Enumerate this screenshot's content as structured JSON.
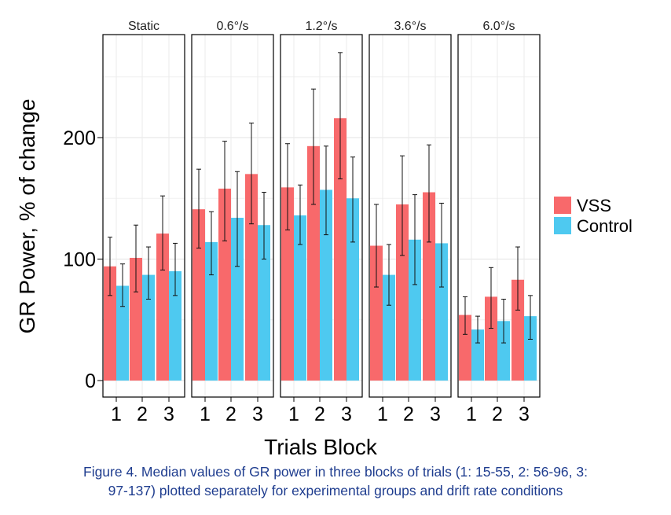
{
  "chart_data": {
    "type": "bar",
    "xlabel": "Trials Block",
    "ylabel": "GR Power, % of change",
    "ylim": [
      -10,
      295
    ],
    "yticks": [
      0,
      100,
      200
    ],
    "categories": [
      "1",
      "2",
      "3"
    ],
    "legend": {
      "position": "right",
      "entries": [
        "VSS",
        "Control"
      ]
    },
    "colors": {
      "VSS": "#f8696b",
      "Control": "#4ec9f0"
    },
    "grid": true,
    "panels": [
      {
        "label": "Static",
        "series": [
          {
            "name": "VSS",
            "values": [
              94,
              101,
              121
            ],
            "err_low": [
              70,
              73,
              91
            ],
            "err_high": [
              118,
              128,
              152
            ]
          },
          {
            "name": "Control",
            "values": [
              78,
              87,
              90
            ],
            "err_low": [
              61,
              67,
              70
            ],
            "err_high": [
              96,
              110,
              113
            ]
          }
        ]
      },
      {
        "label": "0.6°/s",
        "series": [
          {
            "name": "VSS",
            "values": [
              141,
              158,
              170
            ],
            "err_low": [
              109,
              115,
              129
            ],
            "err_high": [
              174,
              197,
              212
            ]
          },
          {
            "name": "Control",
            "values": [
              114,
              134,
              128
            ],
            "err_low": [
              87,
              94,
              100
            ],
            "err_high": [
              139,
              172,
              155
            ]
          }
        ]
      },
      {
        "label": "1.2°/s",
        "series": [
          {
            "name": "VSS",
            "values": [
              159,
              193,
              216
            ],
            "err_low": [
              124,
              145,
              166
            ],
            "err_high": [
              195,
              240,
              270
            ]
          },
          {
            "name": "Control",
            "values": [
              136,
              157,
              150
            ],
            "err_low": [
              112,
              120,
              114
            ],
            "err_high": [
              161,
              193,
              184
            ]
          }
        ]
      },
      {
        "label": "3.6°/s",
        "series": [
          {
            "name": "VSS",
            "values": [
              111,
              145,
              155
            ],
            "err_low": [
              77,
              103,
              114
            ],
            "err_high": [
              145,
              185,
              194
            ]
          },
          {
            "name": "Control",
            "values": [
              87,
              116,
              113
            ],
            "err_low": [
              62,
              79,
              77
            ],
            "err_high": [
              112,
              153,
              146
            ]
          }
        ]
      },
      {
        "label": "6.0°/s",
        "series": [
          {
            "name": "VSS",
            "values": [
              54,
              69,
              83
            ],
            "err_low": [
              38,
              43,
              58
            ],
            "err_high": [
              69,
              93,
              110
            ]
          },
          {
            "name": "Control",
            "values": [
              42,
              49,
              53
            ],
            "err_low": [
              31,
              31,
              34
            ],
            "err_high": [
              53,
              67,
              70
            ]
          }
        ]
      }
    ]
  },
  "caption": {
    "line1": "Figure 4. Median values of GR power in three blocks of trials (1: 15-55, 2: 56-96, 3:",
    "line2": "97-137) plotted separately for experimental groups and drift rate conditions"
  }
}
